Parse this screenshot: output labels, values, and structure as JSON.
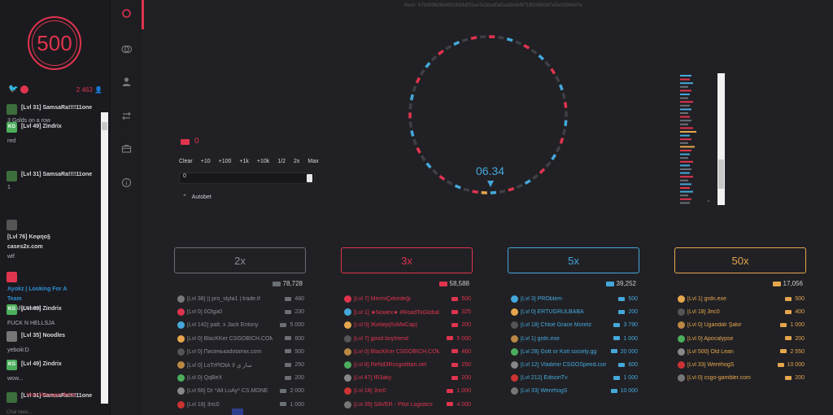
{
  "hash": "Hash: 67b0936d6d4910b33df31ee7e2da0fa83a3bcfef8718f2d68347e5e02964d7e",
  "logo_text": "500",
  "chat": {
    "online_count": "2 463",
    "more_messages": "More Messages Below",
    "input_placeholder": "Chat here...",
    "messages": [
      {
        "name": "[Lvl 31] SamsaRa!!!!11one",
        "text": "3 Golds on a row",
        "avatar_color": "#3c6e3c"
      },
      {
        "name": "[Lvl 49] Zindrix",
        "text": "red",
        "avatar_color": "#4cae5c",
        "avatar_text": "KG"
      },
      {
        "name": "[Lvl 31] SamsaRa!!!!11one",
        "text": "1",
        "avatar_color": "#3c6e3c"
      },
      {
        "name": "[Lvl 76] Keφηο§",
        "name2": "cases2x.com",
        "text": "wtf",
        "avatar_color": "#555"
      },
      {
        "name": "Ayokz | Looking For A",
        "name2": "Team",
        "text": "Finally Ratex",
        "avatar_color": "#e0344e",
        "name_color": "#2d8fd5"
      },
      {
        "name": "[Lvl 49] Zindrix",
        "text": "FUCK N HELLSJA",
        "avatar_color": "#4cae5c",
        "avatar_text": "KG"
      },
      {
        "name": "[Lvl 35] Noodles",
        "text": "yeboiii:D",
        "avatar_color": "#777"
      },
      {
        "name": "[Lvl 49] Zindrix",
        "text": "wow...",
        "avatar_color": "#4cae5c",
        "avatar_text": "KG"
      },
      {
        "name": "[Lvl 31] SamsaRa!!!!11one",
        "text": "",
        "avatar_color": "#3c6e3c"
      }
    ]
  },
  "rail_icons": [
    "roulette-icon",
    "coinflip-icon",
    "user-icon",
    "exchange-icon",
    "shop-icon",
    "info-icon"
  ],
  "wheel": {
    "countdown": "06.34"
  },
  "bet": {
    "balance": "0",
    "quick_buttons": [
      "Clear",
      "+10",
      "+100",
      "+1k",
      "+10k",
      "1/2",
      "2x",
      "Max"
    ],
    "input_value": "0",
    "autobet_label": "Autobet"
  },
  "colors": {
    "red": "#e0344e",
    "blue": "#45a8db",
    "grey": "#6b6f76",
    "gold": "#e6a64d",
    "bg": "#212125"
  },
  "history": [
    "#45a8db",
    "#e0344e",
    "#45a8db",
    "#6b6f76",
    "#e0344e",
    "#45a8db",
    "#6b6f76",
    "#e0344e",
    "#6b6f76",
    "#45a8db",
    "#6b6f76",
    "#e0344e",
    "#6b6f76",
    "#6b6f76",
    "#e0344e",
    "#e6a64d",
    "#45a8db",
    "#e0344e",
    "#6b6f76",
    "#e6a64d",
    "#e0344e",
    "#45a8db",
    "#6b6f76",
    "#e0344e",
    "#45a8db",
    "#6b6f76",
    "#45a8db",
    "#e0344e",
    "#6b6f76",
    "#45a8db",
    "#e0344e",
    "#45a8db",
    "#6b6f76",
    "#e0344e",
    "#6b6f76"
  ],
  "columns": [
    {
      "label": "2x",
      "total": "78,728",
      "color": "#6b6f76",
      "btn_color": "#6b6f76",
      "rows": [
        {
          "name": "[Lvl 38] || pro_styla1 | trade.tf",
          "amount": "480"
        },
        {
          "name": "[Lvl 0] 0Olga0",
          "amount": "230"
        },
        {
          "name": "[Lvl 142] patt. x Jack Entony",
          "amount": "5 000"
        },
        {
          "name": "[Lvl 0] BlacKKer CSGOBICH.COM",
          "amount": "600"
        },
        {
          "name": "[Lvl 0] Писенькаdotamix.com",
          "amount": "500"
        },
        {
          "name": "[Lvl 0] LoTrPlOtА سار ي لا",
          "amount": "250"
        },
        {
          "name": "[Lvl 0] QqBeX",
          "amount": "200"
        },
        {
          "name": "[Lvl 66] Dr *All LuAy* CS.MONE",
          "amount": "2 000"
        },
        {
          "name": "[Lvl 18] 3ric0",
          "amount": "1 000"
        }
      ]
    },
    {
      "label": "3x",
      "total": "58,588",
      "color": "#e0344e",
      "btn_color": "#e0344e",
      "rows": [
        {
          "name": "[Lvl 7] MermiÇekirdeği",
          "amount": "500"
        },
        {
          "name": "[Lvl 1] ★Nowex★ #RoadToGlobal",
          "amount": "325"
        },
        {
          "name": "[Lvl 0] Жибер(КоМиСар)",
          "amount": "200"
        },
        {
          "name": "[Lvl 7] good boyfriend",
          "amount": "5 000"
        },
        {
          "name": "[Lvl 0] BlacKKer CSGOBICH.COM",
          "amount": "460"
        },
        {
          "name": "[Lvl 8] ReNd3Rcsgottitan.net",
          "amount": "250"
        },
        {
          "name": "[Lvl 47] fR3aky",
          "amount": "200"
        },
        {
          "name": "[Lvl 18] 3ric0",
          "amount": "1 000"
        },
        {
          "name": "[Lvl 35] SAVER - Pilot Logistics",
          "amount": "4 000"
        }
      ]
    },
    {
      "label": "5x",
      "total": "39,252",
      "color": "#45a8db",
      "btn_color": "#45a8db",
      "rows": [
        {
          "name": "[Lvl 3] PROblem",
          "amount": "500"
        },
        {
          "name": "[Lvl 0] ERTUĞRULBABA",
          "amount": "200"
        },
        {
          "name": "[Lvl 18] Chloé Grace Moretz",
          "amount": "3 790"
        },
        {
          "name": "[Lvl 1] grdn.exe",
          "amount": "1 000"
        },
        {
          "name": "[Lvl 28] Gott or Kott society.gg",
          "amount": "20 000"
        },
        {
          "name": "[Lvl 12] Vladimir CSGOSpeed.com",
          "amount": "600"
        },
        {
          "name": "[Lvl 212] EdisonTv",
          "amount": "1 000"
        },
        {
          "name": "[Lvl 33] WerehogS",
          "amount": "10 000"
        }
      ]
    },
    {
      "label": "50x",
      "total": "17,056",
      "color": "#e6a64d",
      "btn_color": "#e6a64d",
      "rows": [
        {
          "name": "[Lvl 1] grdn.exe",
          "amount": "500"
        },
        {
          "name": "[Lvl 18] 3ric0",
          "amount": "400"
        },
        {
          "name": "[Lvl 0] Ugandalı Şakir",
          "amount": "1 000"
        },
        {
          "name": "[Lvl 0] Apocalypse",
          "amount": "200"
        },
        {
          "name": "[Lvl 500] Old Lean",
          "amount": "2 550"
        },
        {
          "name": "[Lvl 33] WerehogS",
          "amount": "10 000"
        },
        {
          "name": "[Lvl 0] csgo-gambler.com",
          "amount": "200"
        }
      ]
    }
  ]
}
